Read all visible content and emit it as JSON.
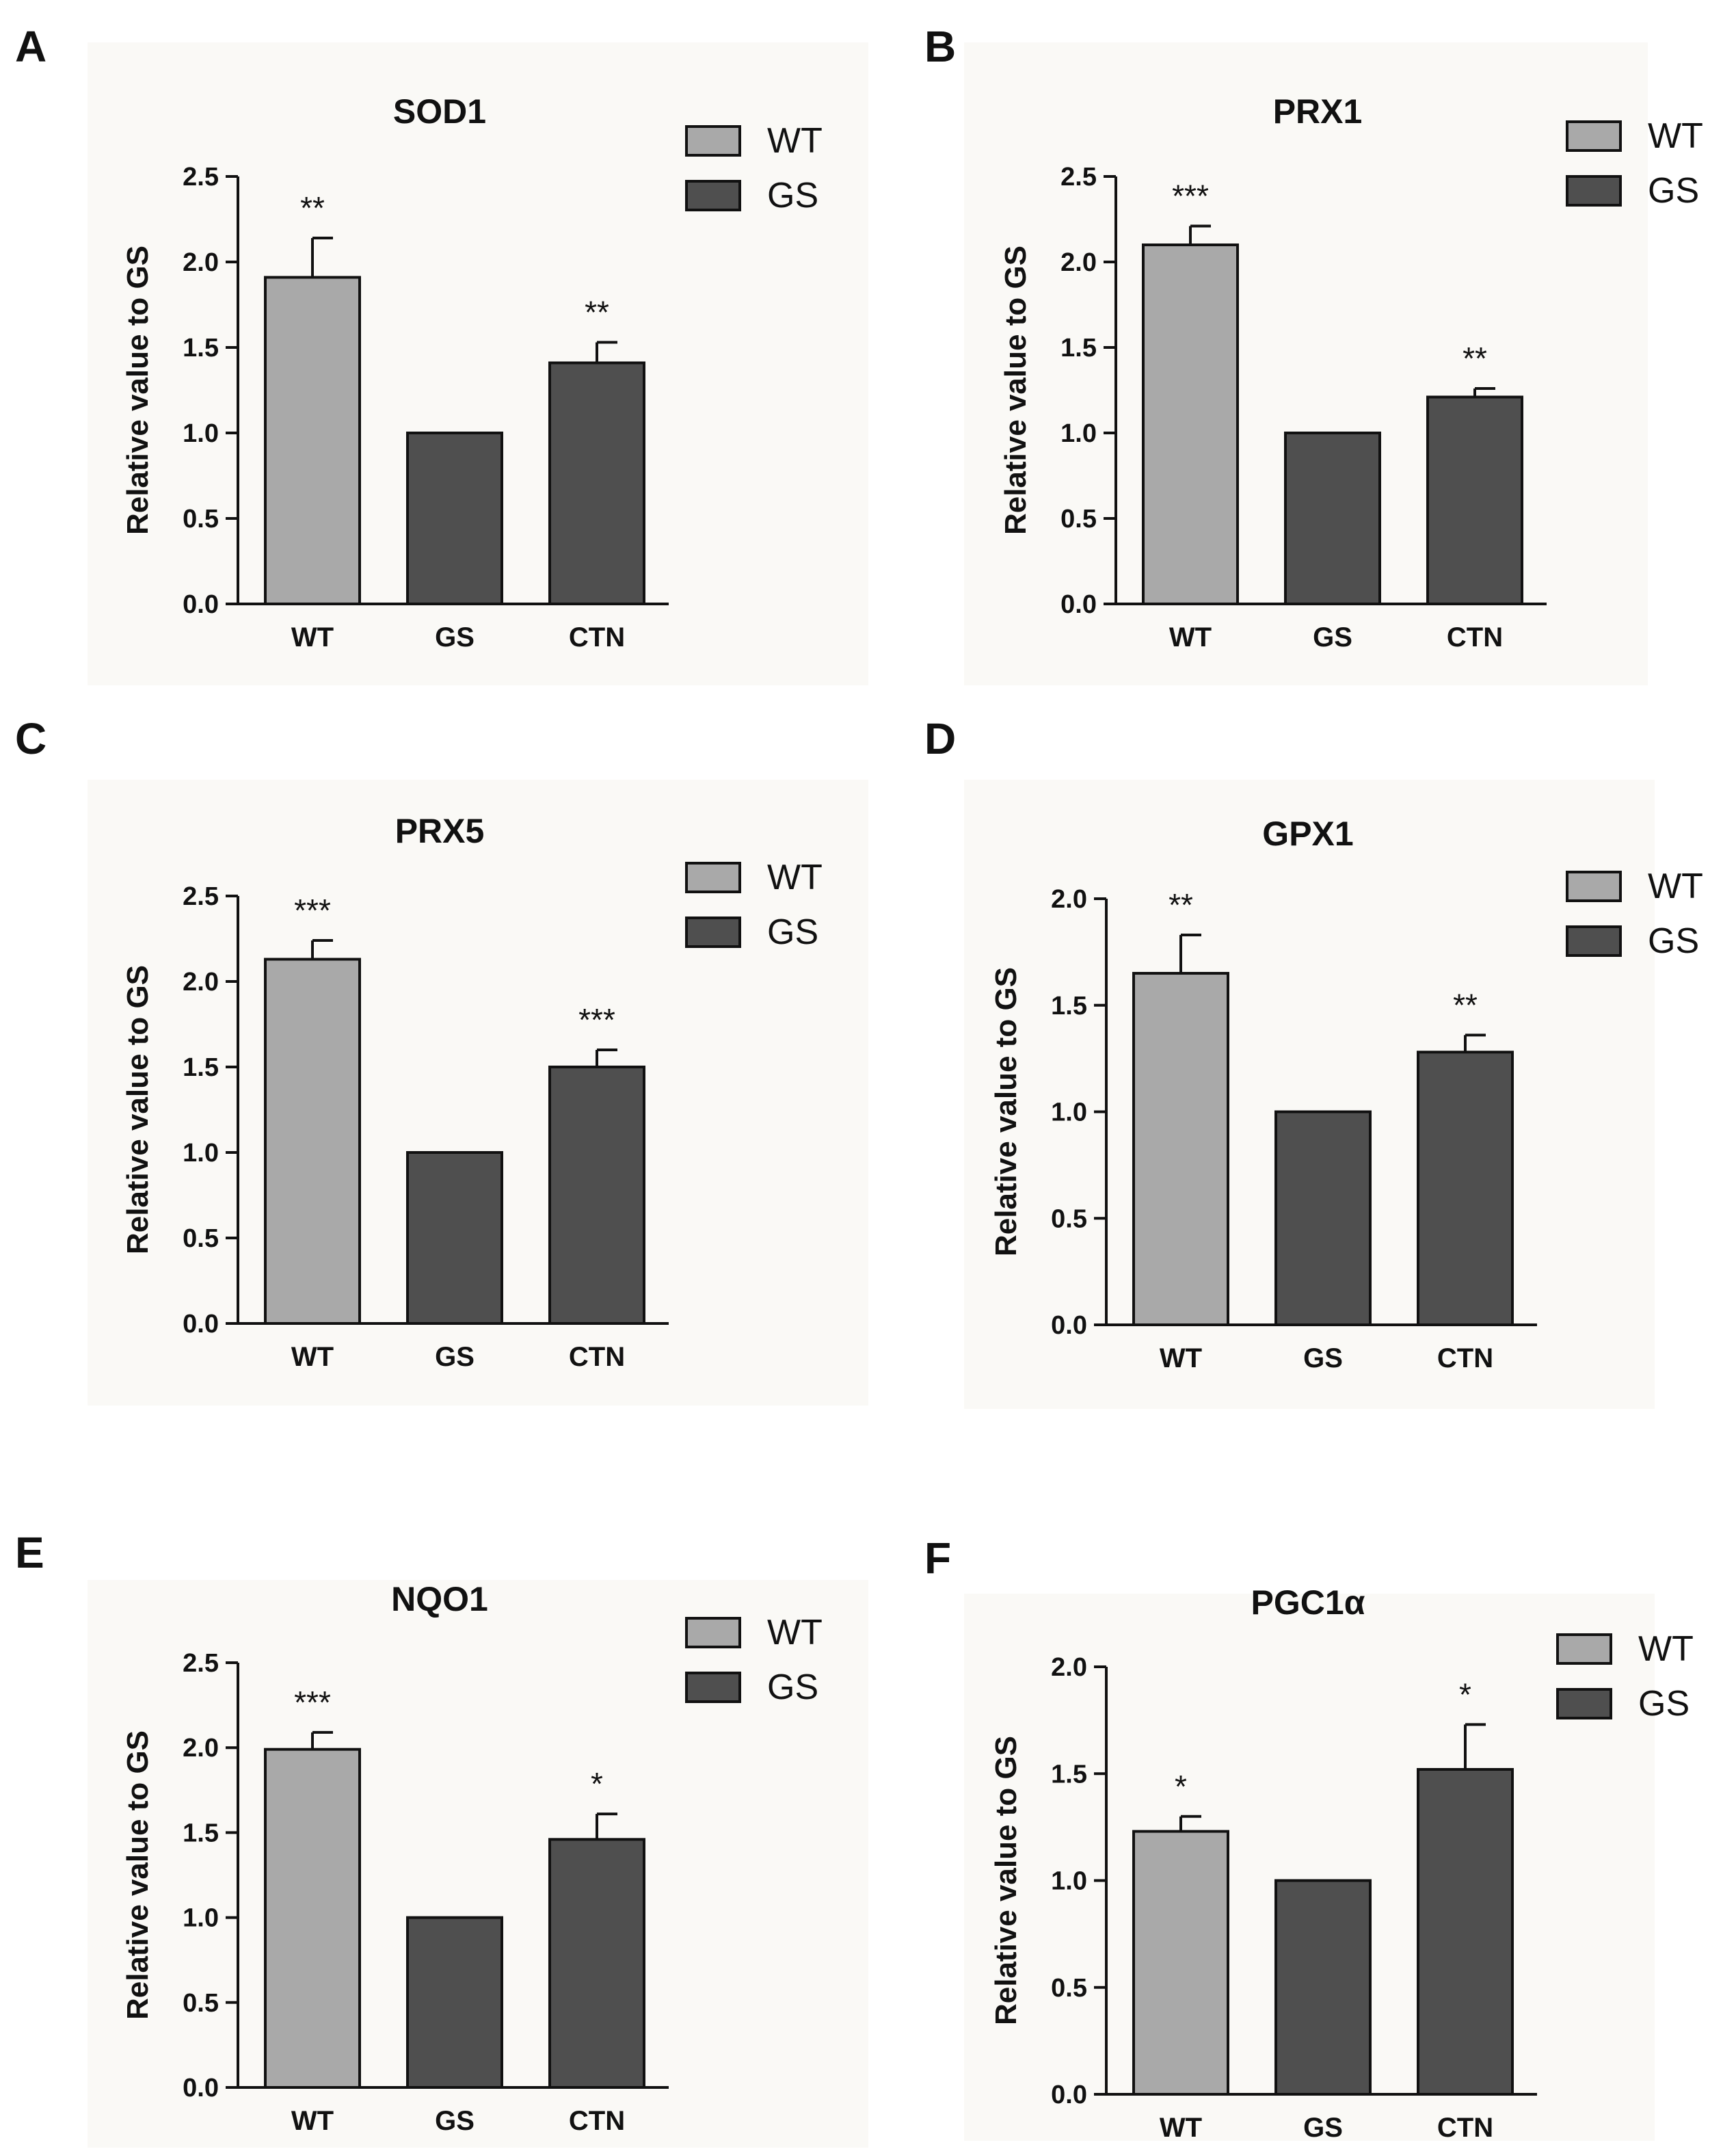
{
  "colors": {
    "wt": "#a9a9a9",
    "gs": "#4f4f4f",
    "ctn": "#4f4f4f",
    "axis": "#111111",
    "panel_bg": "#faf9f6"
  },
  "chart_data": [
    {
      "panel": "A",
      "type": "bar",
      "title": "SOD1",
      "ylabel": "Relative value to GS",
      "xlabel": "",
      "ylim": [
        0,
        2.5
      ],
      "yticks": [
        "0.0",
        "0.5",
        "1.0",
        "1.5",
        "2.0",
        "2.5"
      ],
      "categories": [
        "WT",
        "GS",
        "CTN"
      ],
      "values": [
        1.91,
        1.0,
        1.41
      ],
      "errors": [
        0.23,
        0.0,
        0.12
      ],
      "significance": [
        "**",
        "",
        "**"
      ],
      "legend": [
        "WT",
        "GS"
      ],
      "legend_position": "top-right"
    },
    {
      "panel": "B",
      "type": "bar",
      "title": "PRX1",
      "ylabel": "Relative value to GS",
      "xlabel": "",
      "ylim": [
        0,
        2.5
      ],
      "yticks": [
        "0.0",
        "0.5",
        "1.0",
        "1.5",
        "2.0",
        "2.5"
      ],
      "categories": [
        "WT",
        "GS",
        "CTN"
      ],
      "values": [
        2.1,
        1.0,
        1.21
      ],
      "errors": [
        0.11,
        0.0,
        0.05
      ],
      "significance": [
        "***",
        "",
        "**"
      ],
      "legend": [
        "WT",
        "GS"
      ],
      "legend_position": "top-right"
    },
    {
      "panel": "C",
      "type": "bar",
      "title": "PRX5",
      "ylabel": "Relative value to GS",
      "xlabel": "",
      "ylim": [
        0,
        2.5
      ],
      "yticks": [
        "0.0",
        "0.5",
        "1.0",
        "1.5",
        "2.0",
        "2.5"
      ],
      "categories": [
        "WT",
        "GS",
        "CTN"
      ],
      "values": [
        2.13,
        1.0,
        1.5
      ],
      "errors": [
        0.11,
        0.0,
        0.1
      ],
      "significance": [
        "***",
        "",
        "***"
      ],
      "legend": [
        "WT",
        "GS"
      ],
      "legend_position": "top-right"
    },
    {
      "panel": "D",
      "type": "bar",
      "title": "GPX1",
      "ylabel": "Relative value to GS",
      "xlabel": "",
      "ylim": [
        0,
        2.0
      ],
      "yticks": [
        "0.0",
        "0.5",
        "1.0",
        "1.5",
        "2.0"
      ],
      "categories": [
        "WT",
        "GS",
        "CTN"
      ],
      "values": [
        1.65,
        1.0,
        1.28
      ],
      "errors": [
        0.18,
        0.0,
        0.08
      ],
      "significance": [
        "**",
        "",
        "**"
      ],
      "legend": [
        "WT",
        "GS"
      ],
      "legend_position": "top-right"
    },
    {
      "panel": "E",
      "type": "bar",
      "title": "NQO1",
      "ylabel": "Relative value to GS",
      "xlabel": "",
      "ylim": [
        0,
        2.5
      ],
      "yticks": [
        "0.0",
        "0.5",
        "1.0",
        "1.5",
        "2.0",
        "2.5"
      ],
      "categories": [
        "WT",
        "GS",
        "CTN"
      ],
      "values": [
        1.99,
        1.0,
        1.46
      ],
      "errors": [
        0.1,
        0.0,
        0.15
      ],
      "significance": [
        "***",
        "",
        "*"
      ],
      "legend": [
        "WT",
        "GS"
      ],
      "legend_position": "top-right"
    },
    {
      "panel": "F",
      "type": "bar",
      "title": "PGC1α",
      "ylabel": "Relative value to GS",
      "xlabel": "",
      "ylim": [
        0,
        2.0
      ],
      "yticks": [
        "0.0",
        "0.5",
        "1.0",
        "1.5",
        "2.0"
      ],
      "categories": [
        "WT",
        "GS",
        "CTN"
      ],
      "values": [
        1.23,
        1.0,
        1.52
      ],
      "errors": [
        0.07,
        0.0,
        0.21
      ],
      "significance": [
        "*",
        "",
        "*"
      ],
      "legend": [
        "WT",
        "GS"
      ],
      "legend_position": "top-right"
    }
  ]
}
